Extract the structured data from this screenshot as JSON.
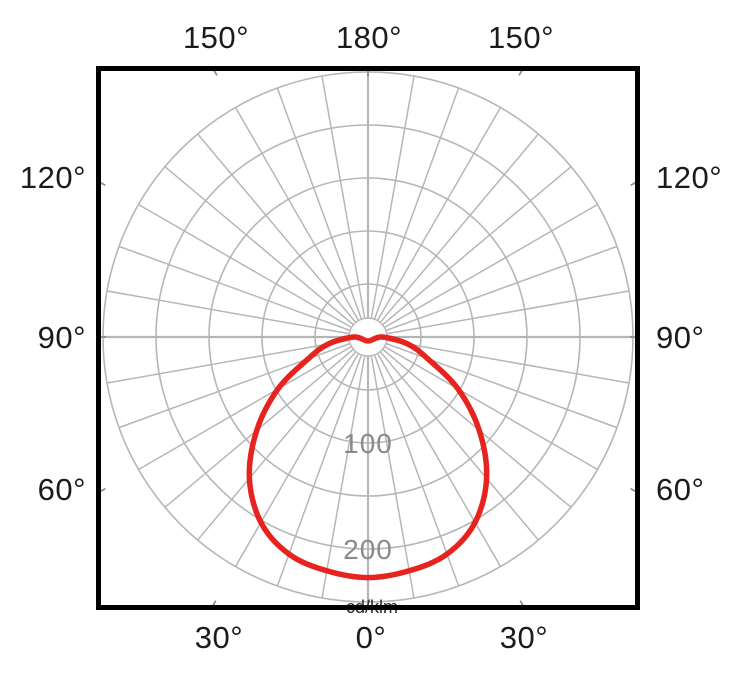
{
  "chart_data": {
    "type": "line",
    "subtype": "polar-luminous-intensity-distribution",
    "angle_axis": {
      "unit": "deg",
      "zero_direction": "down",
      "grid_step_deg": 10,
      "tick_step_deg": 30,
      "labels_top": [
        "150°",
        "180°",
        "150°"
      ],
      "labels_bottom": [
        "30°",
        "0°",
        "30°"
      ],
      "labels_left": [
        "120°",
        "90°",
        "60°"
      ],
      "labels_right": [
        "120°",
        "90°",
        "60°"
      ]
    },
    "radial_axis": {
      "range": [
        0,
        250
      ],
      "grid_step": 50,
      "tick_labels": [
        "100",
        "200"
      ],
      "tick_values": [
        100,
        200
      ],
      "unit_label": "cd/klm"
    },
    "series": [
      {
        "name": "luminous-intensity-curve",
        "color": "#e6231e",
        "angles_deg": [
          -90,
          -80,
          -70,
          -60,
          -50,
          -40,
          -30,
          -20,
          -10,
          0,
          10,
          20,
          30,
          40,
          50,
          60,
          70,
          80,
          90
        ],
        "values": [
          13,
          38,
          60,
          98,
          137,
          174,
          202,
          218,
          224,
          227,
          224,
          218,
          202,
          174,
          137,
          98,
          60,
          38,
          13
        ]
      }
    ],
    "legend": {
      "visible": false
    },
    "grid": {
      "visible": true
    },
    "colors": {
      "grid": "#b6b6b6",
      "axis_line": "#b0b0b0",
      "tick": "#8c8c8c",
      "border": "#000000",
      "angle_labels": "#1b1b1b",
      "radial_labels": "#8a8a8a",
      "background": "#ffffff",
      "curve": "#e6231e"
    }
  }
}
